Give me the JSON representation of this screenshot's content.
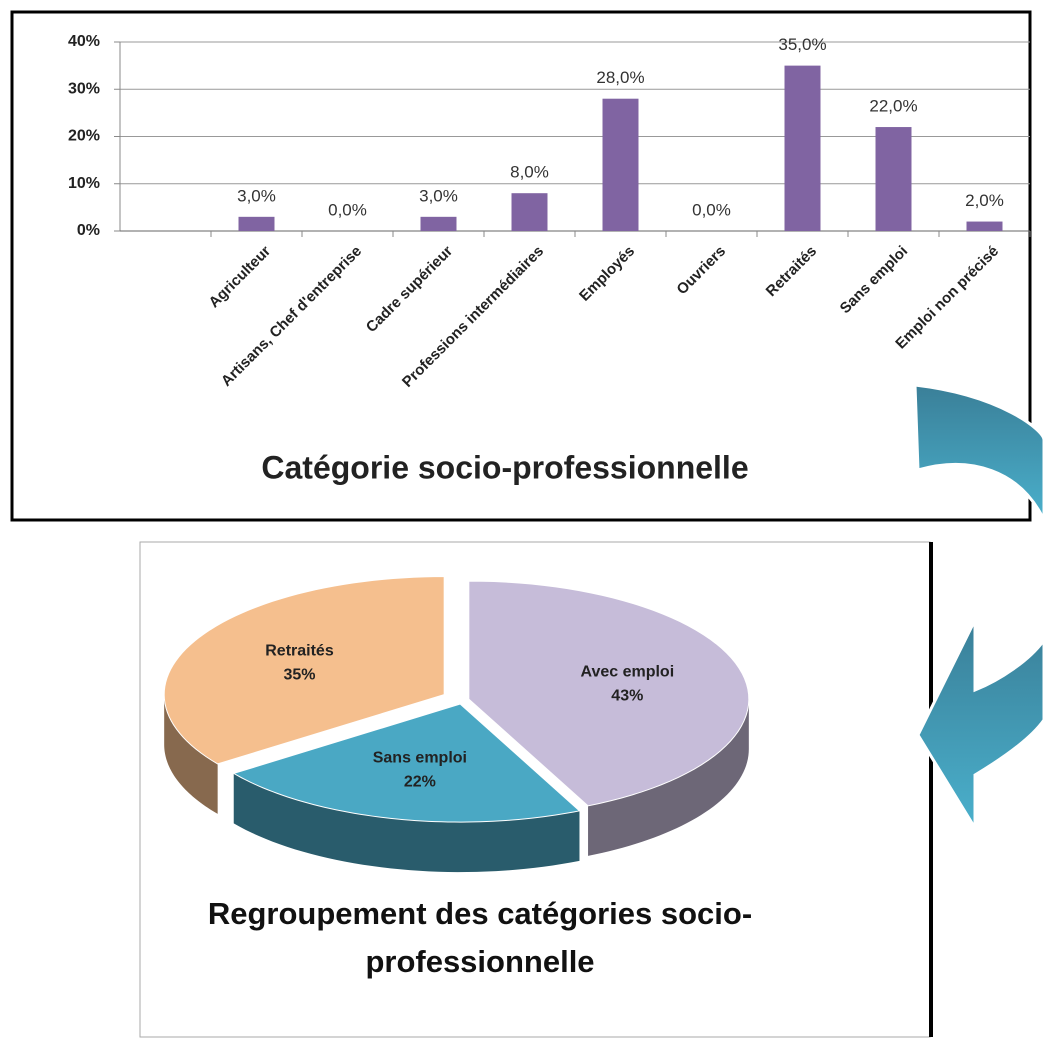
{
  "chart_data": [
    {
      "type": "bar",
      "title": "Catégorie socio-professionnelle",
      "categories": [
        null,
        "Agriculteur",
        "Artisans, Chef d'entreprise",
        "Cadre supérieur",
        "Professions intermédiaires",
        "Employés",
        "Ouvriers",
        "Retraités",
        "Sans emploi",
        "Emploi non précisé"
      ],
      "values": [
        null,
        3,
        0,
        3,
        8,
        28,
        0,
        35,
        22,
        2
      ],
      "value_labels": [
        null,
        "3,0%",
        "0,0%",
        "3,0%",
        "8,0%",
        "28,0%",
        "0,0%",
        "35,0%",
        "22,0%",
        "2,0%"
      ],
      "color": "#8064a2",
      "ylim": [
        0,
        40
      ],
      "yticks": [
        {
          "value": 0,
          "label": "0%"
        },
        {
          "value": 10,
          "label": "10%"
        },
        {
          "value": 20,
          "label": "20%"
        },
        {
          "value": 30,
          "label": "30%"
        },
        {
          "value": 40,
          "label": "40%"
        }
      ],
      "grid": true
    },
    {
      "type": "pie",
      "title": "Regroupement des catégories socio-professionnelle",
      "categories": [
        "Avec emploi",
        "Sans emploi",
        "Retraités"
      ],
      "values": [
        43,
        22,
        35
      ],
      "value_labels": [
        "43%",
        "22%",
        "35%"
      ],
      "colors": [
        "#c6bcd9",
        "#4aa8c4",
        "#f5bf8e"
      ]
    }
  ]
}
